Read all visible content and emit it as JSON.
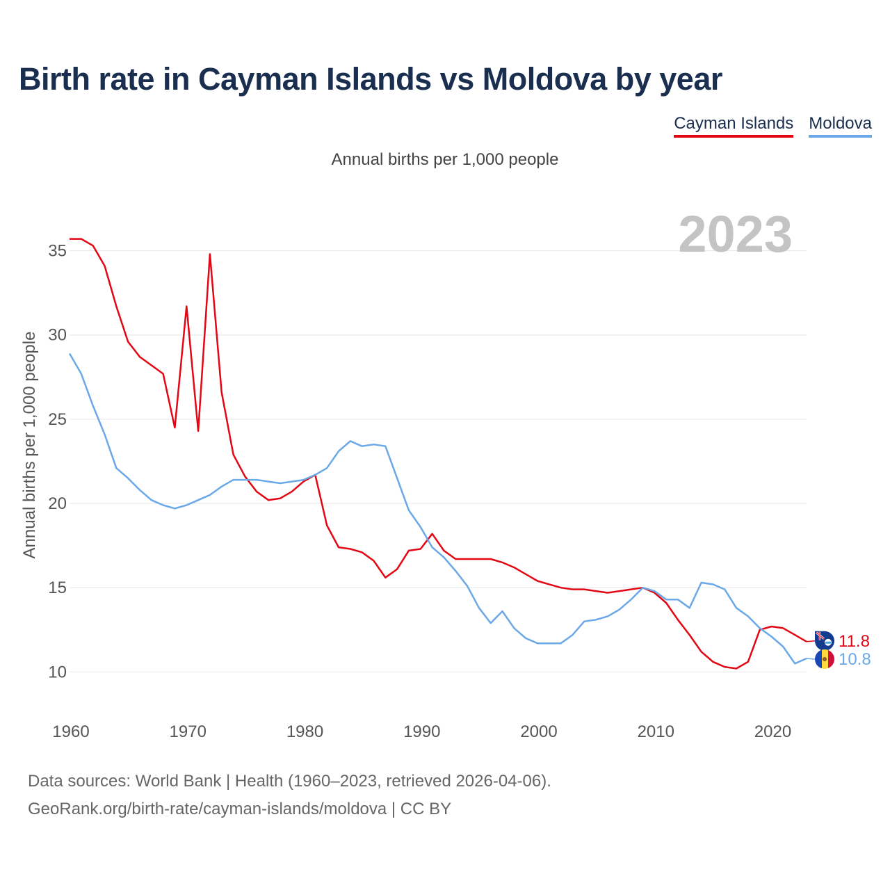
{
  "title": "Birth rate in Cayman Islands vs Moldova by year",
  "subtitle": "Annual births per 1,000 people",
  "year_watermark": "2023",
  "footer": {
    "line1": "Data sources: World Bank | Health (1960–2023, retrieved 2026-04-06).",
    "line2": "GeoRank.org/birth-rate/cayman-islands/moldova | CC BY"
  },
  "colors": {
    "cayman": "#e30613",
    "moldova": "#6aa8e8",
    "grid": "#e6e6e6",
    "axis_text": "#555555"
  },
  "chart_data": {
    "type": "line",
    "title": "Birth rate in Cayman Islands vs Moldova by year",
    "ylabel": "Annual births per 1,000 people",
    "xlabel": "",
    "xlim": [
      1960,
      2023
    ],
    "ylim": [
      8.2,
      37.5
    ],
    "yticks": [
      10,
      15,
      20,
      25,
      30,
      35
    ],
    "xticks": [
      1960,
      1970,
      1980,
      1990,
      2000,
      2010,
      2020
    ],
    "grid": true,
    "legend": "top-right",
    "x": [
      1960,
      1961,
      1962,
      1963,
      1964,
      1965,
      1966,
      1967,
      1968,
      1969,
      1970,
      1971,
      1972,
      1973,
      1974,
      1975,
      1976,
      1977,
      1978,
      1979,
      1980,
      1981,
      1982,
      1983,
      1984,
      1985,
      1986,
      1987,
      1988,
      1989,
      1990,
      1991,
      1992,
      1993,
      1994,
      1995,
      1996,
      1997,
      1998,
      1999,
      2000,
      2001,
      2002,
      2003,
      2004,
      2005,
      2006,
      2007,
      2008,
      2009,
      2010,
      2011,
      2012,
      2013,
      2014,
      2015,
      2016,
      2017,
      2018,
      2019,
      2020,
      2021,
      2022,
      2023
    ],
    "series": [
      {
        "name": "Cayman Islands",
        "end_label": "11.8",
        "values": [
          35.7,
          35.7,
          35.3,
          34.1,
          31.7,
          29.6,
          28.7,
          28.2,
          27.7,
          24.5,
          31.7,
          24.3,
          34.8,
          26.6,
          22.9,
          21.6,
          20.7,
          20.2,
          20.3,
          20.7,
          21.3,
          21.7,
          18.7,
          17.4,
          17.3,
          17.1,
          16.6,
          15.6,
          16.1,
          17.2,
          17.3,
          18.2,
          17.2,
          16.7,
          16.7,
          16.7,
          16.7,
          16.5,
          16.2,
          15.8,
          15.4,
          15.2,
          15.0,
          14.9,
          14.9,
          14.8,
          14.7,
          14.8,
          14.9,
          15.0,
          14.7,
          14.1,
          13.1,
          12.2,
          11.2,
          10.6,
          10.3,
          10.2,
          10.6,
          12.5,
          12.7,
          12.6,
          12.2,
          11.8
        ]
      },
      {
        "name": "Moldova",
        "end_label": "10.8",
        "values": [
          28.9,
          27.7,
          25.8,
          24.1,
          22.1,
          21.5,
          20.8,
          20.2,
          19.9,
          19.7,
          19.9,
          20.2,
          20.5,
          21.0,
          21.4,
          21.4,
          21.4,
          21.3,
          21.2,
          21.3,
          21.4,
          21.7,
          22.1,
          23.1,
          23.7,
          23.4,
          23.5,
          23.4,
          21.5,
          19.6,
          18.6,
          17.4,
          16.8,
          16.0,
          15.1,
          13.8,
          12.9,
          13.6,
          12.6,
          12.0,
          11.7,
          11.7,
          11.7,
          12.2,
          13.0,
          13.1,
          13.3,
          13.7,
          14.3,
          15.0,
          14.8,
          14.3,
          14.3,
          13.8,
          15.3,
          15.2,
          14.9,
          13.8,
          13.3,
          12.6,
          12.1,
          11.5,
          10.5,
          10.8
        ]
      }
    ]
  }
}
